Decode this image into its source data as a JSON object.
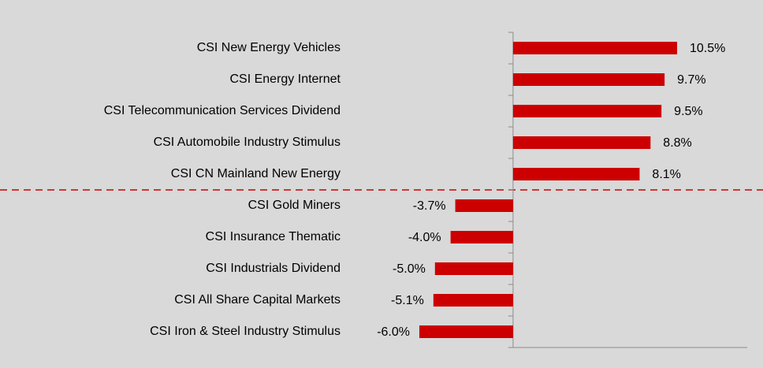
{
  "chart_data": {
    "type": "bar",
    "orientation": "horizontal",
    "categories": [
      "CSI New Energy Vehicles",
      "CSI Energy Internet",
      "CSI Telecommunication Services Dividend",
      "CSI Automobile Industry Stimulus",
      "CSI CN Mainland New Energy",
      "CSI Gold Miners",
      "CSI Insurance Thematic",
      "CSI Industrials Dividend",
      "CSI All Share Capital Markets",
      "CSI Iron & Steel Industry Stimulus"
    ],
    "values": [
      10.5,
      9.7,
      9.5,
      8.8,
      8.1,
      -3.7,
      -4.0,
      -5.0,
      -5.1,
      -6.0
    ],
    "value_labels": [
      "10.5%",
      "9.7%",
      "9.5%",
      "8.8%",
      "8.1%",
      "-3.7%",
      "-4.0%",
      "-5.0%",
      "-5.1%",
      "-6.0%"
    ],
    "color": "#cc0000"
  }
}
